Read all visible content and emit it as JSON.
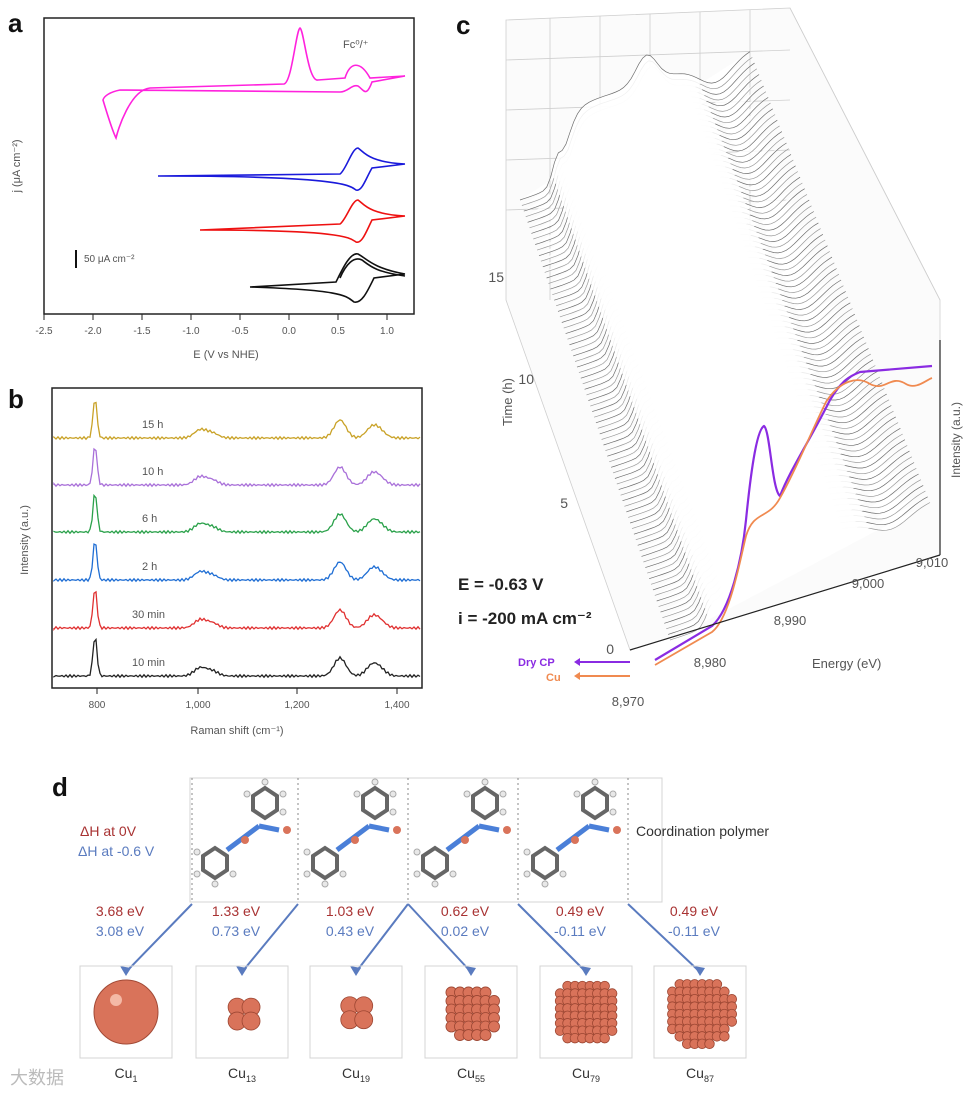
{
  "panels": {
    "a": "a",
    "b": "b",
    "c": "c",
    "d": "d"
  },
  "panel_a": {
    "ylabel": "j (μA cm⁻²)",
    "xlabel": "E (V vs NHE)",
    "ticks": [
      "-2.5",
      "-2.0",
      "-1.5",
      "-1.0",
      "-0.5",
      "0.0",
      "0.5",
      "1.0"
    ],
    "annotation": "Fc⁰/⁺",
    "scalebar": "50 μA cm⁻²",
    "colors": [
      "#ff22dd",
      "#1a1adb",
      "#ee1111",
      "#111111"
    ]
  },
  "panel_b": {
    "ylabel": "Intensity (a.u.)",
    "xlabel": "Raman shift (cm⁻¹)",
    "ticks": [
      "800",
      "1,000",
      "1,200",
      "1,400"
    ],
    "series": [
      {
        "name": "15 h",
        "color": "#c9a227"
      },
      {
        "name": "10 h",
        "color": "#a970d9"
      },
      {
        "name": "6 h",
        "color": "#2aa14a"
      },
      {
        "name": "2 h",
        "color": "#1f6ed4"
      },
      {
        "name": "30 min",
        "color": "#e03030"
      },
      {
        "name": "10 min",
        "color": "#222222"
      }
    ]
  },
  "panel_c": {
    "ylabel": "Time (h)",
    "zlabel": "Intensity (a.u.)",
    "xlabel": "Energy (eV)",
    "time_ticks": [
      "15",
      "10",
      "5",
      "0"
    ],
    "energy_ticks": [
      "8,970",
      "8,980",
      "8,990",
      "9,000",
      "9,010"
    ],
    "condition_E": "E = -0.63 V",
    "condition_i": "i = -200 mA cm⁻²",
    "legend_dry": "Dry CP",
    "legend_cu": "Cu",
    "color_dry": "#8a2be2",
    "color_cu": "#f08a50"
  },
  "panel_d": {
    "label_h0": "ΔH at 0V",
    "label_h06": "ΔH at -0.6 V",
    "polymer_label": "Coordination polymer",
    "color_h0": "#a83232",
    "color_h06": "#5a7bbf",
    "clusters": [
      {
        "e0": "3.68 eV",
        "e06": "3.08 eV",
        "name": "Cu",
        "sub": "1"
      },
      {
        "e0": "1.33 eV",
        "e06": "0.73 eV",
        "name": "Cu",
        "sub": "13"
      },
      {
        "e0": "1.03 eV",
        "e06": "0.43 eV",
        "name": "Cu",
        "sub": "19"
      },
      {
        "e0": "0.62 eV",
        "e06": "0.02 eV",
        "name": "Cu",
        "sub": "55"
      },
      {
        "e0": "0.49 eV",
        "e06": "-0.11 eV",
        "name": "Cu",
        "sub": "79"
      },
      {
        "e0": "0.49 eV",
        "e06": "-0.11 eV",
        "name": "Cu",
        "sub": "87"
      }
    ]
  },
  "watermark": "大数据"
}
